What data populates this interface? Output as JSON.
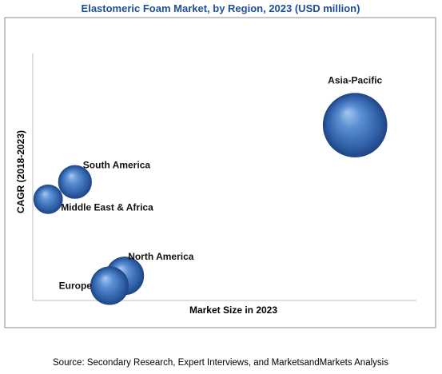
{
  "chart_data": {
    "type": "scatter",
    "title": "Elastomeric Foam Market, by Region, 2023 (USD million)",
    "xlabel": "Market Size in 2023",
    "ylabel": "CAGR (2018-2023)",
    "grid": false,
    "legend": "none",
    "axis_ticks": "none",
    "series": [
      {
        "label": "Asia-Pacific",
        "x": 0.84,
        "y": 0.71,
        "size": 1.0
      },
      {
        "label": "South America",
        "x": 0.11,
        "y": 0.48,
        "size": 0.16
      },
      {
        "label": "Middle East & Africa",
        "x": 0.04,
        "y": 0.41,
        "size": 0.1
      },
      {
        "label": "North America",
        "x": 0.24,
        "y": 0.1,
        "size": 0.24
      },
      {
        "label": "Europe",
        "x": 0.2,
        "y": 0.06,
        "size": 0.24
      }
    ],
    "colors": {
      "bubble": "#3f74bf",
      "title": "#1f4e9a"
    }
  },
  "source_text": "Source: Secondary Research, Expert Interviews, and MarketsandMarkets Analysis"
}
